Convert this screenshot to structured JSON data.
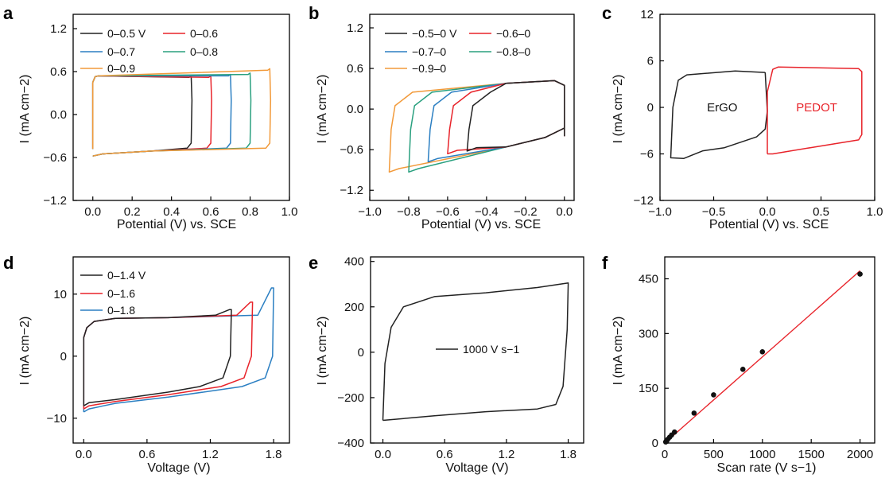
{
  "chart_data": [
    {
      "panel": "a",
      "type": "line",
      "xlabel": "Potential (V) vs. SCE",
      "ylabel": "I (mA cm−2)",
      "xlim": [
        -0.1,
        1.0
      ],
      "ylim": [
        -1.2,
        1.4
      ],
      "xticks": [
        "0.0",
        "0.2",
        "0.4",
        "0.6",
        "0.8",
        "1.0"
      ],
      "yticks": [
        "−1.2",
        "−0.6",
        "0.0",
        "0.6",
        "1.2"
      ],
      "legend": {
        "placement": "top"
      },
      "series": [
        {
          "name": "0–0.5 V",
          "color": "#222222",
          "xmax": 0.5,
          "top": 0.54,
          "bot": -0.47
        },
        {
          "name": "0–0.6",
          "color": "#e8232a",
          "xmax": 0.6,
          "top": 0.54,
          "bot": -0.47
        },
        {
          "name": "0–0.7",
          "color": "#2b7fc2",
          "xmax": 0.7,
          "top": 0.56,
          "bot": -0.47
        },
        {
          "name": "0–0.8",
          "color": "#2aa07f",
          "xmax": 0.8,
          "top": 0.58,
          "bot": -0.47
        },
        {
          "name": "0–0.9",
          "color": "#f29a3a",
          "xmax": 0.9,
          "top": 0.64,
          "bot": -0.47
        }
      ]
    },
    {
      "panel": "b",
      "type": "line",
      "xlabel": "Potential (V) vs. SCE",
      "ylabel": "I (mA cm−2)",
      "xlim": [
        -1.0,
        0.05
      ],
      "ylim": [
        -1.35,
        1.4
      ],
      "xticks": [
        "−1.0",
        "−0.8",
        "−0.6",
        "−0.4",
        "−0.2",
        "0.0"
      ],
      "yticks": [
        "−1.2",
        "−0.6",
        "0.0",
        "0.6",
        "1.2"
      ],
      "legend": {
        "placement": "top"
      },
      "series": [
        {
          "name": "−0.5–0 V",
          "color": "#222222",
          "xmin": -0.5,
          "cath": -0.62
        },
        {
          "name": "−0.6–0",
          "color": "#e8232a",
          "xmin": -0.6,
          "cath": -0.66
        },
        {
          "name": "−0.7–0",
          "color": "#2b7fc2",
          "xmin": -0.7,
          "cath": -0.78
        },
        {
          "name": "−0.8–0",
          "color": "#2aa07f",
          "xmin": -0.8,
          "cath": -0.93
        },
        {
          "name": "−0.9–0",
          "color": "#f29a3a",
          "xmin": -0.9,
          "cath": -0.93
        }
      ]
    },
    {
      "panel": "c",
      "type": "line",
      "xlabel": "Potential (V) vs. SCE",
      "ylabel": "I (mA cm−2)",
      "xlim": [
        -1.0,
        1.0
      ],
      "ylim": [
        -12,
        12
      ],
      "xticks": [
        "−1.0",
        "−0.5",
        "0.0",
        "0.5",
        "1.0"
      ],
      "yticks": [
        "−12",
        "−6",
        "0",
        "6",
        "12"
      ],
      "annotations": [
        {
          "text": "ErGO",
          "color": "#111111"
        },
        {
          "text": "PEDOT",
          "color": "#e8232a"
        }
      ],
      "series": [
        {
          "name": "ErGO",
          "color": "#222222",
          "range": [
            -0.9,
            0.0
          ]
        },
        {
          "name": "PEDOT",
          "color": "#e8232a",
          "range": [
            0.0,
            0.9
          ]
        }
      ]
    },
    {
      "panel": "d",
      "type": "line",
      "xlabel": "Voltage (V)",
      "ylabel": "I (mA cm−2)",
      "xlim": [
        -0.1,
        1.95
      ],
      "ylim": [
        -14,
        16
      ],
      "xticks": [
        "0.0",
        "0.6",
        "1.2",
        "1.8"
      ],
      "yticks": [
        "−10",
        "0",
        "10"
      ],
      "legend": {
        "placement": "top-left"
      },
      "series": [
        {
          "name": "0–1.4 V",
          "color": "#222222",
          "xmax": 1.4,
          "end": 7.5
        },
        {
          "name": "0–1.6",
          "color": "#e8232a",
          "xmax": 1.6,
          "end": 8.7
        },
        {
          "name": "0–1.8",
          "color": "#2b7fc2",
          "xmax": 1.8,
          "end": 11.0
        }
      ]
    },
    {
      "panel": "e",
      "type": "line",
      "xlabel": "Voltage (V)",
      "ylabel": "I (mA cm−2)",
      "xlim": [
        -0.12,
        1.95
      ],
      "ylim": [
        -400,
        420
      ],
      "xticks": [
        "0.0",
        "0.6",
        "1.2",
        "1.8"
      ],
      "yticks": [
        "−400",
        "−200",
        "0",
        "200",
        "400"
      ],
      "legend": {
        "placement": "center"
      },
      "series": [
        {
          "name": "1000 V s−1",
          "color": "#222222"
        }
      ]
    },
    {
      "panel": "f",
      "type": "scatter",
      "xlabel": "Scan rate (V s−1)",
      "ylabel": "I (mA cm−2)",
      "xlim": [
        0,
        2150
      ],
      "ylim": [
        0,
        510
      ],
      "xticks": [
        "0",
        "500",
        "1000",
        "1500",
        "2000"
      ],
      "yticks": [
        "0",
        "150",
        "300",
        "450"
      ],
      "points": [
        [
          10,
          3
        ],
        [
          20,
          6
        ],
        [
          30,
          10
        ],
        [
          50,
          16
        ],
        [
          70,
          22
        ],
        [
          100,
          30
        ],
        [
          300,
          82
        ],
        [
          500,
          132
        ],
        [
          800,
          202
        ],
        [
          1000,
          250
        ],
        [
          2000,
          463
        ]
      ],
      "fit": {
        "color": "#e8232a",
        "x": [
          0,
          2000
        ],
        "y": [
          0,
          472
        ]
      }
    }
  ],
  "panels": {
    "a": {
      "label": "a",
      "xlabel": "Potential (V) vs. SCE",
      "ylabel": "I (mA cm−2)"
    },
    "b": {
      "label": "b",
      "xlabel": "Potential (V) vs. SCE",
      "ylabel": "I (mA cm−2)"
    },
    "c": {
      "label": "c",
      "xlabel": "Potential (V) vs. SCE",
      "ylabel": "I (mA cm−2)"
    },
    "d": {
      "label": "d",
      "xlabel": "Voltage (V)",
      "ylabel": "I (mA cm−2)"
    },
    "e": {
      "label": "e",
      "xlabel": "Voltage (V)",
      "ylabel": "I (mA cm−2)"
    },
    "f": {
      "label": "f",
      "xlabel": "Scan rate (V s−1)",
      "ylabel": "I (mA cm−2)"
    }
  }
}
